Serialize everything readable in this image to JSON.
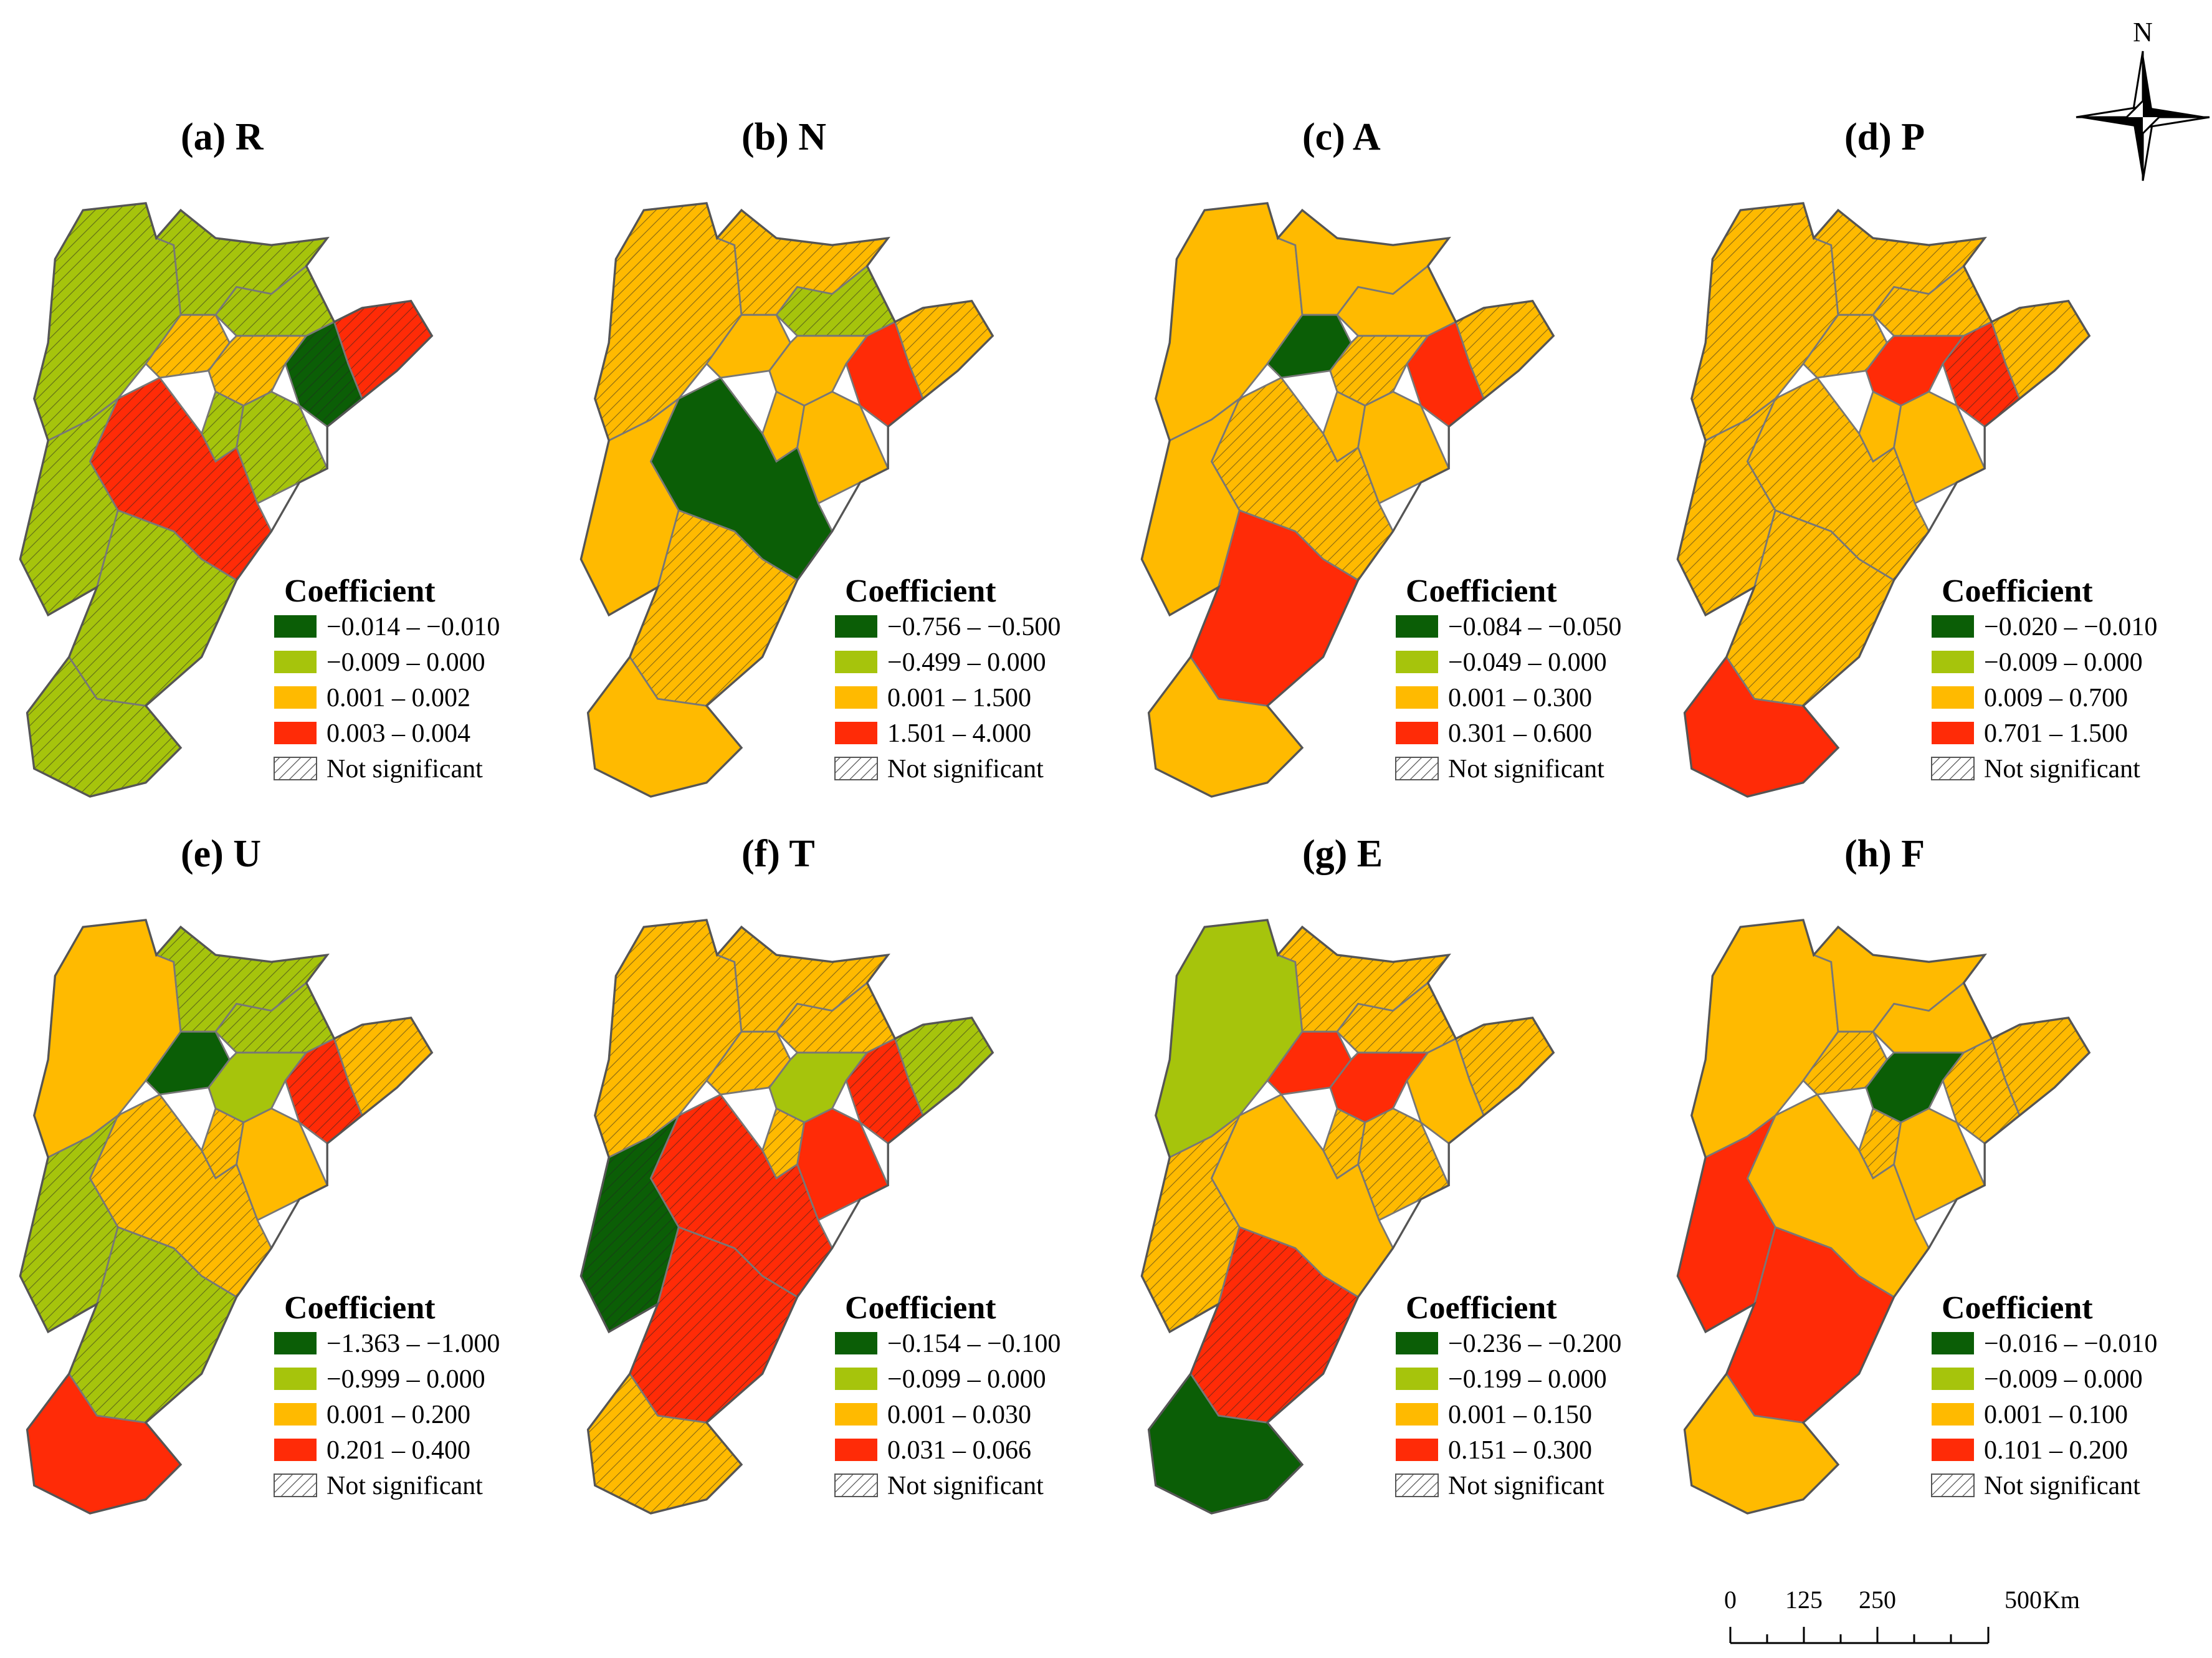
{
  "colors": {
    "dark_green": "#0b5e06",
    "light_green": "#a6c40c",
    "orange": "#ffba00",
    "red": "#ff2b07",
    "hatch_bg": "#ffffff",
    "boundary": "#777777"
  },
  "north_arrow": {
    "label": "N",
    "icon": "compass-rose-icon"
  },
  "scale_bar": {
    "labels": [
      "0",
      "125",
      "250",
      "500"
    ],
    "unit": "Km"
  },
  "legend_title": "Coefficient",
  "not_significant_label": "Not significant",
  "panels": [
    {
      "id": "a",
      "title": "(a) R",
      "classes": [
        "−0.014 – −0.010",
        "−0.009 – 0.000",
        "0.001 – 0.002",
        "0.003 – 0.004"
      ],
      "regions": [
        {
          "c": "light_green",
          "h": true
        },
        {
          "c": "light_green",
          "h": true
        },
        {
          "c": "light_green",
          "h": true
        },
        {
          "c": "orange",
          "h": true
        },
        {
          "c": "orange",
          "h": true
        },
        {
          "c": "light_green",
          "h": true
        },
        {
          "c": "dark_green",
          "h": true
        },
        {
          "c": "red",
          "h": true
        },
        {
          "c": "light_green",
          "h": true
        },
        {
          "c": "red",
          "h": true
        },
        {
          "c": "light_green",
          "h": true
        },
        {
          "c": "light_green",
          "h": true
        },
        {
          "c": "light_green",
          "h": true
        }
      ]
    },
    {
      "id": "b",
      "title": "(b) N",
      "classes": [
        "−0.756 – −0.500",
        "−0.499 – 0.000",
        "0.001 – 1.500",
        "1.501 – 4.000"
      ],
      "regions": [
        {
          "c": "orange",
          "h": true
        },
        {
          "c": "orange",
          "h": true
        },
        {
          "c": "light_green",
          "h": true
        },
        {
          "c": "orange",
          "h": false
        },
        {
          "c": "orange",
          "h": false
        },
        {
          "c": "orange",
          "h": false
        },
        {
          "c": "red",
          "h": false
        },
        {
          "c": "orange",
          "h": true
        },
        {
          "c": "orange",
          "h": false
        },
        {
          "c": "dark_green",
          "h": false
        },
        {
          "c": "orange",
          "h": false
        },
        {
          "c": "orange",
          "h": true
        },
        {
          "c": "orange",
          "h": false
        }
      ]
    },
    {
      "id": "c",
      "title": "(c) A",
      "classes": [
        "−0.084 – −0.050",
        "−0.049 – 0.000",
        "0.001 – 0.300",
        "0.301 – 0.600"
      ],
      "regions": [
        {
          "c": "orange",
          "h": false
        },
        {
          "c": "orange",
          "h": false
        },
        {
          "c": "orange",
          "h": false
        },
        {
          "c": "dark_green",
          "h": false
        },
        {
          "c": "orange",
          "h": true
        },
        {
          "c": "orange",
          "h": false
        },
        {
          "c": "red",
          "h": false
        },
        {
          "c": "orange",
          "h": true
        },
        {
          "c": "orange",
          "h": false
        },
        {
          "c": "orange",
          "h": true
        },
        {
          "c": "orange",
          "h": false
        },
        {
          "c": "red",
          "h": false
        },
        {
          "c": "orange",
          "h": false
        }
      ]
    },
    {
      "id": "d",
      "title": "(d) P",
      "classes": [
        "−0.020 – −0.010",
        "−0.009 – 0.000",
        "0.009 – 0.700",
        "0.701 – 1.500"
      ],
      "regions": [
        {
          "c": "orange",
          "h": true
        },
        {
          "c": "orange",
          "h": true
        },
        {
          "c": "orange",
          "h": true
        },
        {
          "c": "orange",
          "h": true
        },
        {
          "c": "red",
          "h": false
        },
        {
          "c": "orange",
          "h": false
        },
        {
          "c": "red",
          "h": true
        },
        {
          "c": "orange",
          "h": true
        },
        {
          "c": "orange",
          "h": false
        },
        {
          "c": "orange",
          "h": true
        },
        {
          "c": "orange",
          "h": true
        },
        {
          "c": "orange",
          "h": true
        },
        {
          "c": "red",
          "h": false
        }
      ]
    },
    {
      "id": "e",
      "title": "(e) U",
      "classes": [
        "−1.363 – −1.000",
        "−0.999 – 0.000",
        "0.001 – 0.200",
        "0.201 – 0.400"
      ],
      "regions": [
        {
          "c": "orange",
          "h": false
        },
        {
          "c": "light_green",
          "h": true
        },
        {
          "c": "light_green",
          "h": true
        },
        {
          "c": "dark_green",
          "h": false
        },
        {
          "c": "light_green",
          "h": false
        },
        {
          "c": "orange",
          "h": true
        },
        {
          "c": "red",
          "h": true
        },
        {
          "c": "orange",
          "h": true
        },
        {
          "c": "orange",
          "h": false
        },
        {
          "c": "orange",
          "h": true
        },
        {
          "c": "light_green",
          "h": true
        },
        {
          "c": "light_green",
          "h": true
        },
        {
          "c": "red",
          "h": false
        }
      ]
    },
    {
      "id": "f",
      "title": "(f) T",
      "classes": [
        "−0.154 – −0.100",
        "−0.099 – 0.000",
        "0.001 – 0.030",
        "0.031 – 0.066"
      ],
      "regions": [
        {
          "c": "orange",
          "h": true
        },
        {
          "c": "orange",
          "h": true
        },
        {
          "c": "orange",
          "h": true
        },
        {
          "c": "orange",
          "h": true
        },
        {
          "c": "light_green",
          "h": false
        },
        {
          "c": "orange",
          "h": true
        },
        {
          "c": "red",
          "h": true
        },
        {
          "c": "light_green",
          "h": true
        },
        {
          "c": "red",
          "h": false
        },
        {
          "c": "red",
          "h": true
        },
        {
          "c": "dark_green",
          "h": true
        },
        {
          "c": "red",
          "h": true
        },
        {
          "c": "orange",
          "h": true
        }
      ]
    },
    {
      "id": "g",
      "title": "(g) E",
      "classes": [
        "−0.236 – −0.200",
        "−0.199 – 0.000",
        "0.001 – 0.150",
        "0.151 – 0.300"
      ],
      "regions": [
        {
          "c": "light_green",
          "h": false
        },
        {
          "c": "orange",
          "h": true
        },
        {
          "c": "orange",
          "h": true
        },
        {
          "c": "red",
          "h": false
        },
        {
          "c": "red",
          "h": false
        },
        {
          "c": "orange",
          "h": true
        },
        {
          "c": "orange",
          "h": false
        },
        {
          "c": "orange",
          "h": true
        },
        {
          "c": "orange",
          "h": true
        },
        {
          "c": "orange",
          "h": false
        },
        {
          "c": "orange",
          "h": true
        },
        {
          "c": "red",
          "h": true
        },
        {
          "c": "dark_green",
          "h": false
        }
      ]
    },
    {
      "id": "h",
      "title": "(h) F",
      "classes": [
        "−0.016 – −0.010",
        "−0.009 – 0.000",
        "0.001 – 0.100",
        "0.101 – 0.200"
      ],
      "regions": [
        {
          "c": "orange",
          "h": false
        },
        {
          "c": "orange",
          "h": false
        },
        {
          "c": "orange",
          "h": false
        },
        {
          "c": "orange",
          "h": true
        },
        {
          "c": "dark_green",
          "h": false
        },
        {
          "c": "orange",
          "h": true
        },
        {
          "c": "orange",
          "h": true
        },
        {
          "c": "orange",
          "h": true
        },
        {
          "c": "orange",
          "h": false
        },
        {
          "c": "orange",
          "h": false
        },
        {
          "c": "red",
          "h": false
        },
        {
          "c": "red",
          "h": false
        },
        {
          "c": "orange",
          "h": false
        }
      ]
    }
  ]
}
